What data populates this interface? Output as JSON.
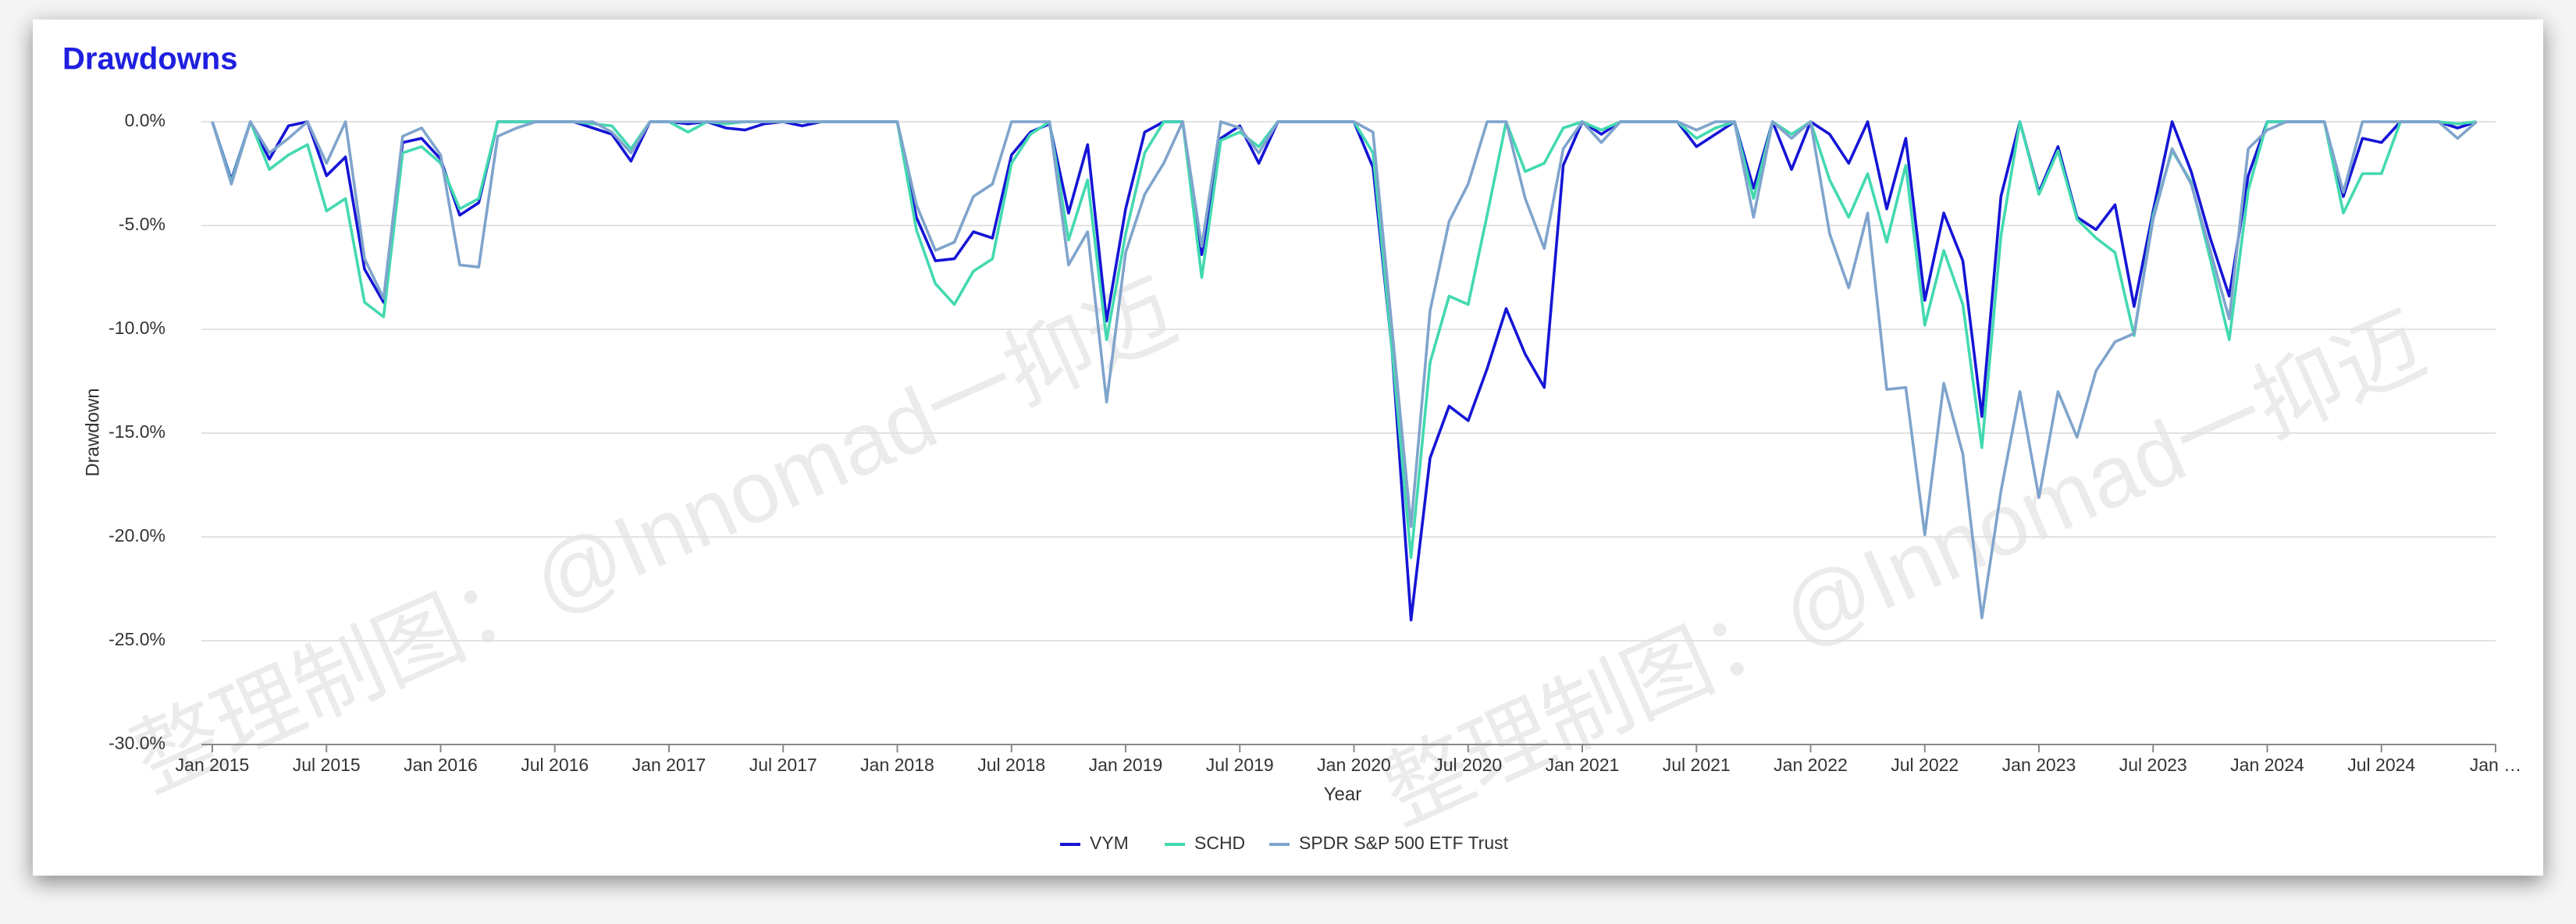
{
  "chart_data": {
    "type": "line",
    "title": "Drawdowns",
    "x_label": "Year",
    "y_label": "Drawdown",
    "watermarks": [
      "整理制图：@Innomad一抑迈",
      "整理制图：@Innomad一抑迈"
    ],
    "x": [
      "2015-01",
      "2015-02",
      "2015-03",
      "2015-04",
      "2015-05",
      "2015-06",
      "2015-07",
      "2015-08",
      "2015-09",
      "2015-10",
      "2015-11",
      "2015-12",
      "2016-01",
      "2016-02",
      "2016-03",
      "2016-04",
      "2016-05",
      "2016-06",
      "2016-07",
      "2016-08",
      "2016-09",
      "2016-10",
      "2016-11",
      "2016-12",
      "2017-01",
      "2017-02",
      "2017-03",
      "2017-04",
      "2017-05",
      "2017-06",
      "2017-07",
      "2017-08",
      "2017-09",
      "2017-10",
      "2017-11",
      "2017-12",
      "2018-01",
      "2018-02",
      "2018-03",
      "2018-04",
      "2018-05",
      "2018-06",
      "2018-07",
      "2018-08",
      "2018-09",
      "2018-10",
      "2018-11",
      "2018-12",
      "2019-01",
      "2019-02",
      "2019-03",
      "2019-04",
      "2019-05",
      "2019-06",
      "2019-07",
      "2019-08",
      "2019-09",
      "2019-10",
      "2019-11",
      "2019-12",
      "2020-01",
      "2020-02",
      "2020-03",
      "2020-04",
      "2020-05",
      "2020-06",
      "2020-07",
      "2020-08",
      "2020-09",
      "2020-10",
      "2020-11",
      "2020-12",
      "2021-01",
      "2021-02",
      "2021-03",
      "2021-04",
      "2021-05",
      "2021-06",
      "2021-07",
      "2021-08",
      "2021-09",
      "2021-10",
      "2021-11",
      "2021-12",
      "2022-01",
      "2022-02",
      "2022-03",
      "2022-04",
      "2022-05",
      "2022-06",
      "2022-07",
      "2022-08",
      "2022-09",
      "2022-10",
      "2022-11",
      "2022-12",
      "2023-01",
      "2023-02",
      "2023-03",
      "2023-04",
      "2023-05",
      "2023-06",
      "2023-07",
      "2023-08",
      "2023-09",
      "2023-10",
      "2023-11",
      "2023-12",
      "2024-01",
      "2024-02",
      "2024-03",
      "2024-04",
      "2024-05",
      "2024-06",
      "2024-07",
      "2024-08",
      "2024-09",
      "2024-10",
      "2024-11",
      "2024-12"
    ],
    "xlim": [
      "2015-01",
      "2025-01"
    ],
    "xticks": [
      {
        "value": "2015-01",
        "label": "Jan 2015"
      },
      {
        "value": "2015-07",
        "label": "Jul 2015"
      },
      {
        "value": "2016-01",
        "label": "Jan 2016"
      },
      {
        "value": "2016-07",
        "label": "Jul 2016"
      },
      {
        "value": "2017-01",
        "label": "Jan 2017"
      },
      {
        "value": "2017-07",
        "label": "Jul 2017"
      },
      {
        "value": "2018-01",
        "label": "Jan 2018"
      },
      {
        "value": "2018-07",
        "label": "Jul 2018"
      },
      {
        "value": "2019-01",
        "label": "Jan 2019"
      },
      {
        "value": "2019-07",
        "label": "Jul 2019"
      },
      {
        "value": "2020-01",
        "label": "Jan 2020"
      },
      {
        "value": "2020-07",
        "label": "Jul 2020"
      },
      {
        "value": "2021-01",
        "label": "Jan 2021"
      },
      {
        "value": "2021-07",
        "label": "Jul 2021"
      },
      {
        "value": "2022-01",
        "label": "Jan 2022"
      },
      {
        "value": "2022-07",
        "label": "Jul 2022"
      },
      {
        "value": "2023-01",
        "label": "Jan 2023"
      },
      {
        "value": "2023-07",
        "label": "Jul 2023"
      },
      {
        "value": "2024-01",
        "label": "Jan 2024"
      },
      {
        "value": "2024-07",
        "label": "Jul 2024"
      },
      {
        "value": "2025-01",
        "label": "Jan …"
      }
    ],
    "ylim": [
      -30,
      0
    ],
    "yticks": [
      {
        "value": 0,
        "label": "0.0%"
      },
      {
        "value": -5,
        "label": "-5.0%"
      },
      {
        "value": -10,
        "label": "-10.0%"
      },
      {
        "value": -15,
        "label": "-15.0%"
      },
      {
        "value": -20,
        "label": "-20.0%"
      },
      {
        "value": -25,
        "label": "-25.0%"
      },
      {
        "value": -30,
        "label": "-30.0%"
      }
    ],
    "grid": true,
    "legend": "bottom",
    "series": [
      {
        "name": "VYM",
        "color": "#1515d6",
        "values": [
          0,
          -2.8,
          0,
          -1.8,
          -0.2,
          0,
          -2.6,
          -1.7,
          -7.1,
          -8.7,
          -1.0,
          -0.8,
          -1.8,
          -4.5,
          -3.9,
          0,
          0,
          0,
          0,
          0,
          -0.3,
          -0.6,
          -1.9,
          0,
          0,
          -0.1,
          0,
          -0.3,
          -0.4,
          -0.1,
          0,
          -0.2,
          0,
          0,
          0,
          0,
          0,
          -4.6,
          -6.7,
          -6.6,
          -5.3,
          -5.6,
          -1.6,
          -0.5,
          -0.1,
          -4.4,
          -1.1,
          -9.6,
          -4.2,
          -0.5,
          0,
          0,
          -6.4,
          -0.8,
          -0.2,
          -2.0,
          0,
          0,
          0,
          0,
          0,
          -2.2,
          -11,
          -24.0,
          -16.2,
          -13.7,
          -14.4,
          -11.9,
          -9.0,
          -11.2,
          -12.8,
          -2.1,
          0,
          -0.6,
          0,
          0,
          0,
          0,
          -1.2,
          -0.6,
          0,
          -3.2,
          0,
          -2.3,
          0,
          -0.6,
          -2.0,
          0,
          -4.2,
          -0.8,
          -8.6,
          -4.4,
          -6.7,
          -14.2,
          -3.6,
          0,
          -3.4,
          -1.2,
          -4.6,
          -5.2,
          -4.0,
          -8.9,
          -4.3,
          0,
          -2.4,
          -5.6,
          -8.4,
          -2.6,
          0,
          0,
          0,
          0,
          -3.6,
          -0.8,
          -1.0,
          0,
          0,
          0,
          -0.3,
          0
        ]
      },
      {
        "name": "SCHD",
        "color": "#43d9b0",
        "values": [
          0,
          -2.9,
          0,
          -2.3,
          -1.6,
          -1.1,
          -4.3,
          -3.7,
          -8.7,
          -9.4,
          -1.5,
          -1.2,
          -2.0,
          -4.2,
          -3.7,
          0,
          0,
          0,
          0,
          0,
          -0.1,
          -0.2,
          -1.3,
          0,
          0,
          -0.5,
          0,
          -0.1,
          0,
          0,
          0,
          0,
          0,
          0,
          0,
          0,
          0,
          -5.2,
          -7.8,
          -8.8,
          -7.2,
          -6.6,
          -2.0,
          -0.6,
          0,
          -5.7,
          -2.8,
          -10.5,
          -5.4,
          -1.5,
          0,
          0,
          -7.5,
          -0.9,
          -0.5,
          -1.2,
          0,
          0,
          0,
          0,
          0,
          -1.5,
          -11,
          -21.0,
          -11.6,
          -8.4,
          -8.8,
          -4.5,
          0,
          -2.4,
          -2.0,
          -0.3,
          0,
          -0.4,
          0,
          0,
          0,
          0,
          -0.8,
          -0.3,
          0,
          -3.7,
          0,
          -0.6,
          0,
          -2.8,
          -4.6,
          -2.5,
          -5.8,
          -2.1,
          -9.8,
          -6.2,
          -8.8,
          -15.7,
          -5.5,
          0,
          -3.5,
          -1.4,
          -4.7,
          -5.6,
          -6.3,
          -10.3,
          -4.5,
          -1.4,
          -2.9,
          -6.6,
          -10.5,
          -3.3,
          0,
          0,
          0,
          0,
          -4.4,
          -2.5,
          -2.5,
          0,
          0,
          0,
          -0.1,
          0
        ]
      },
      {
        "name": "SPDR S&P 500 ETF Trust",
        "color": "#7fa4cc",
        "values": [
          0,
          -3.0,
          0,
          -1.5,
          -0.8,
          0,
          -2.0,
          0,
          -6.6,
          -8.5,
          -0.7,
          -0.3,
          -1.6,
          -6.9,
          -7.0,
          -0.7,
          -0.3,
          0,
          0,
          0,
          0,
          -0.5,
          -1.5,
          0,
          0,
          0,
          0,
          0,
          0,
          0,
          0,
          0,
          0,
          0,
          0,
          0,
          0,
          -4.0,
          -6.2,
          -5.8,
          -3.6,
          -3.0,
          0,
          0,
          0,
          -6.9,
          -5.3,
          -13.5,
          -6.3,
          -3.5,
          -2.0,
          0,
          -6.0,
          0,
          -0.3,
          -1.5,
          0,
          0,
          0,
          0,
          0,
          -0.5,
          -10,
          -19.5,
          -9.1,
          -4.8,
          -3.0,
          0,
          0,
          -3.7,
          -6.1,
          -1.3,
          0,
          -1.0,
          0,
          0,
          0,
          0,
          -0.4,
          0,
          0,
          -4.6,
          0,
          -0.8,
          0,
          -5.4,
          -8.0,
          -4.4,
          -12.9,
          -12.8,
          -19.9,
          -12.6,
          -16.0,
          -23.9,
          -17.8,
          -13.0,
          -18.1,
          -13.0,
          -15.2,
          -12.0,
          -10.6,
          -10.2,
          -4.7,
          -1.3,
          -3.0,
          -6.2,
          -9.5,
          -1.3,
          -0.4,
          0,
          0,
          0,
          -3.4,
          0,
          0,
          0,
          0,
          0,
          -0.8,
          0
        ]
      }
    ]
  }
}
